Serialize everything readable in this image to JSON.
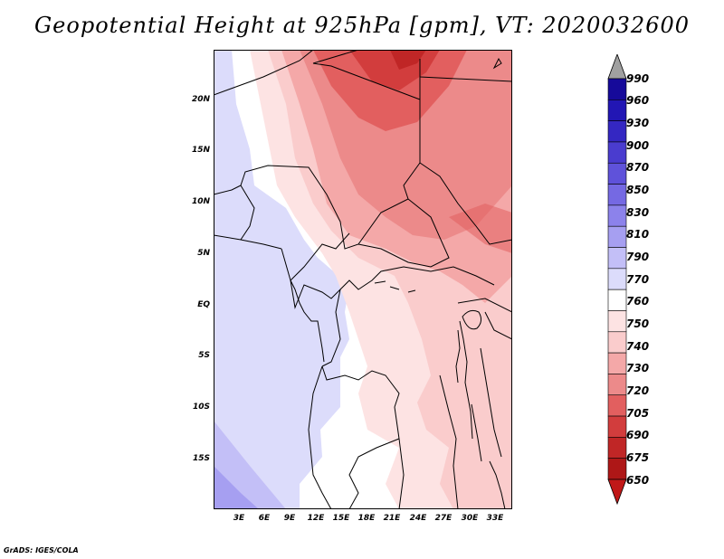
{
  "title": "Geopotential Height at 925hPa [gpm], VT: 2020032600",
  "y_axis_labels": [
    "20N",
    "15N",
    "10N",
    "5N",
    "EQ",
    "5S",
    "10S",
    "15S"
  ],
  "x_axis_labels": [
    "3E",
    "6E",
    "9E",
    "12E",
    "15E",
    "18E",
    "21E",
    "24E",
    "27E",
    "30E",
    "33E"
  ],
  "colorbar": {
    "levels": [
      "990",
      "960",
      "930",
      "900",
      "870",
      "850",
      "830",
      "810",
      "790",
      "770",
      "760",
      "750",
      "740",
      "730",
      "720",
      "705",
      "690",
      "675",
      "650"
    ],
    "colors": [
      "#160A9A",
      "#2216B4",
      "#3427C2",
      "#4A3CCF",
      "#5F52DA",
      "#7569E3",
      "#8C82EB",
      "#A69FF1",
      "#C3BFF7",
      "#DCDCFB",
      "#FFFFFF",
      "#FDE3E3",
      "#FACCCC",
      "#F4A8A8",
      "#EC8A8A",
      "#E25F5F",
      "#D23D3D",
      "#C02626",
      "#AE1717"
    ],
    "arrow_top_color": "#A0A0A0",
    "arrow_bottom_color": "#C01818"
  },
  "credit": "GrADS: IGES/COLA"
}
